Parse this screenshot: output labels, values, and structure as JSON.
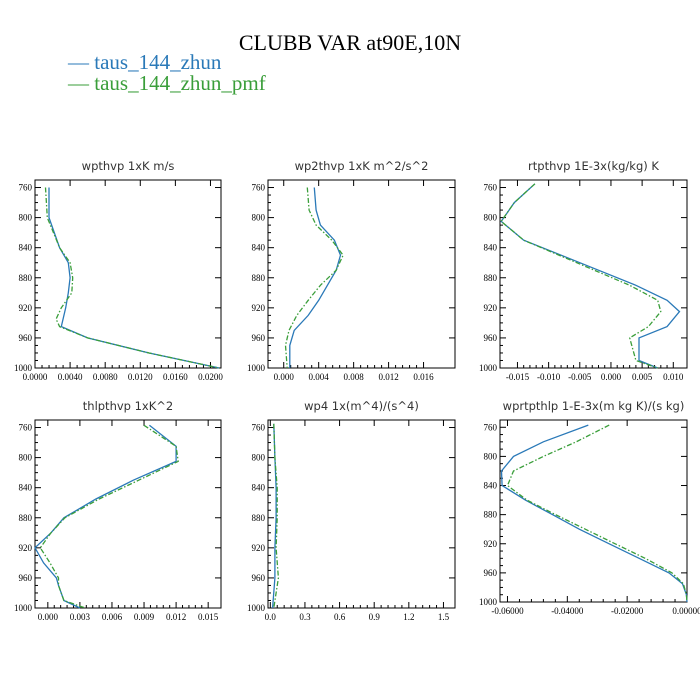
{
  "title": "CLUBB VAR at90E,10N",
  "legend": [
    {
      "label": "— taus_144_zhun",
      "color": "#2a79b8"
    },
    {
      "label": "— taus_144_zhun_pmf",
      "color": "#3a9e3a"
    }
  ],
  "chart_data": [
    {
      "type": "line",
      "title": "wpthvp  1xK m/s",
      "xlim": [
        0,
        0.0212
      ],
      "xticks": [
        0,
        0.004,
        0.008,
        0.012,
        0.016,
        0.02
      ],
      "xtick_labels": [
        "0.0000",
        "0.0040",
        "0.0080",
        "0.0120",
        "0.0160",
        "0.0200"
      ],
      "ylim": [
        1000,
        750
      ],
      "yticks": [
        760,
        800,
        840,
        880,
        920,
        960,
        1000
      ],
      "series": [
        {
          "style": "solid",
          "color": "#2a79b8",
          "y": [
            760,
            800,
            840,
            860,
            880,
            900,
            920,
            945,
            960,
            980,
            1000
          ],
          "x": [
            0.0016,
            0.0016,
            0.0028,
            0.0038,
            0.004,
            0.0038,
            0.0035,
            0.003,
            0.006,
            0.013,
            0.021
          ]
        },
        {
          "style": "dashed",
          "color": "#3a9e3a",
          "y": [
            760,
            800,
            840,
            860,
            880,
            900,
            920,
            935,
            945,
            960,
            980,
            1000
          ],
          "x": [
            0.0012,
            0.0014,
            0.0028,
            0.004,
            0.0043,
            0.0042,
            0.003,
            0.0024,
            0.0028,
            0.006,
            0.013,
            0.021
          ]
        }
      ]
    },
    {
      "type": "line",
      "title": "wp2thvp  1xK m^2/s^2",
      "xlim": [
        -0.0018,
        0.0196
      ],
      "xticks": [
        0,
        0.004,
        0.008,
        0.012,
        0.016
      ],
      "xtick_labels": [
        "0.000",
        "0.004",
        "0.008",
        "0.012",
        "0.016"
      ],
      "ylim": [
        1000,
        750
      ],
      "yticks": [
        760,
        800,
        840,
        880,
        920,
        960,
        1000
      ],
      "series": [
        {
          "style": "solid",
          "color": "#2a79b8",
          "y": [
            760,
            790,
            810,
            830,
            850,
            870,
            890,
            910,
            930,
            950,
            970,
            1000
          ],
          "x": [
            0.0035,
            0.0037,
            0.0042,
            0.0058,
            0.0065,
            0.006,
            0.005,
            0.004,
            0.0028,
            0.0012,
            0.0007,
            0.0007
          ]
        },
        {
          "style": "dashed",
          "color": "#3a9e3a",
          "y": [
            760,
            790,
            810,
            830,
            850,
            870,
            890,
            910,
            930,
            950,
            970,
            1000
          ],
          "x": [
            0.0027,
            0.0029,
            0.0037,
            0.0055,
            0.0068,
            0.006,
            0.0042,
            0.0028,
            0.0015,
            0.0006,
            0.0002,
            0.0004
          ]
        }
      ]
    },
    {
      "type": "line",
      "title": "rtpthvp  1E-3x(kg/kg) K",
      "xlim": [
        -0.0178,
        0.0122
      ],
      "xticks": [
        -0.015,
        -0.01,
        -0.005,
        0,
        0.005,
        0.01
      ],
      "xtick_labels": [
        "-0.015",
        "-0.010",
        "-0.005",
        "0.000",
        "0.005",
        "0.010"
      ],
      "ylim": [
        1000,
        750
      ],
      "yticks": [
        760,
        800,
        840,
        880,
        920,
        960,
        1000
      ],
      "series": [
        {
          "style": "solid",
          "color": "#2a79b8",
          "y": [
            755,
            780,
            805,
            830,
            860,
            890,
            910,
            925,
            945,
            960,
            990,
            1000
          ],
          "x": [
            -0.0122,
            -0.0155,
            -0.0176,
            -0.014,
            -0.005,
            0.004,
            0.009,
            0.011,
            0.009,
            0.0045,
            0.0045,
            0.0075
          ]
        },
        {
          "style": "dashed",
          "color": "#3a9e3a",
          "y": [
            755,
            780,
            805,
            830,
            860,
            890,
            910,
            925,
            945,
            960,
            990,
            1000
          ],
          "x": [
            -0.0122,
            -0.0155,
            -0.0176,
            -0.014,
            -0.0055,
            0.003,
            0.0075,
            0.008,
            0.006,
            0.003,
            0.004,
            0.0075
          ]
        }
      ]
    },
    {
      "type": "line",
      "title": "thlpthvp  1xK^2",
      "xlim": [
        -0.0012,
        0.0162
      ],
      "xticks": [
        0,
        0.003,
        0.006,
        0.009,
        0.012,
        0.015
      ],
      "xtick_labels": [
        "0.000",
        "0.003",
        "0.006",
        "0.009",
        "0.012",
        "0.015"
      ],
      "ylim": [
        1000,
        750
      ],
      "yticks": [
        760,
        800,
        840,
        880,
        920,
        960,
        1000
      ],
      "series": [
        {
          "style": "solid",
          "color": "#2a79b8",
          "y": [
            757,
            785,
            805,
            830,
            855,
            880,
            900,
            920,
            940,
            960,
            970,
            990,
            1000
          ],
          "x": [
            0.0095,
            0.012,
            0.012,
            0.008,
            0.0045,
            0.0015,
            0.0003,
            -0.0012,
            -0.0004,
            0.0008,
            0.001,
            0.0015,
            0.003
          ]
        },
        {
          "style": "dashed",
          "color": "#3a9e3a",
          "y": [
            757,
            785,
            805,
            830,
            855,
            880,
            900,
            920,
            940,
            960,
            970,
            990,
            1000
          ],
          "x": [
            0.009,
            0.012,
            0.0122,
            0.0085,
            0.0048,
            0.0016,
            0.0003,
            -0.0007,
            0.0002,
            0.001,
            0.001,
            0.0015,
            0.0035
          ]
        }
      ]
    },
    {
      "type": "line",
      "title": "wp4  1x(m^4)/(s^4)",
      "xlim": [
        -0.02,
        1.6
      ],
      "xticks": [
        0,
        0.3,
        0.6,
        0.9,
        1.2,
        1.5
      ],
      "xtick_labels": [
        "0.0",
        "0.3",
        "0.6",
        "0.9",
        "1.2",
        "1.5"
      ],
      "ylim": [
        1000,
        750
      ],
      "yticks": [
        760,
        800,
        840,
        880,
        920,
        960,
        1000
      ],
      "series": [
        {
          "style": "solid",
          "color": "#2a79b8",
          "y": [
            755,
            800,
            840,
            880,
            920,
            960,
            1000
          ],
          "x": [
            0.03,
            0.04,
            0.05,
            0.05,
            0.04,
            0.04,
            0.02
          ]
        },
        {
          "style": "dashed",
          "color": "#3a9e3a",
          "y": [
            755,
            800,
            840,
            880,
            920,
            960,
            1000
          ],
          "x": [
            0.03,
            0.04,
            0.06,
            0.06,
            0.05,
            0.07,
            0.03
          ]
        }
      ]
    },
    {
      "type": "line",
      "title": "wprtpthlp  1-E-3x(m kg K)/(s kg)",
      "xlim": [
        -0.0625,
        0
      ],
      "xticks": [
        -0.06,
        -0.04,
        -0.02,
        0
      ],
      "xtick_labels": [
        "-0.06000",
        "-0.04000",
        "-0.02000",
        "0.00000"
      ],
      "ylim": [
        1000,
        750
      ],
      "yticks": [
        760,
        800,
        840,
        880,
        920,
        960,
        1000
      ],
      "series": [
        {
          "style": "solid",
          "color": "#2a79b8",
          "y": [
            757,
            780,
            800,
            820,
            840,
            860,
            880,
            900,
            920,
            940,
            960,
            975,
            990,
            1000
          ],
          "x": [
            -0.033,
            -0.048,
            -0.058,
            -0.062,
            -0.0618,
            -0.054,
            -0.045,
            -0.036,
            -0.026,
            -0.016,
            -0.006,
            -0.0015,
            -0.0002,
            0
          ]
        },
        {
          "style": "dashed",
          "color": "#3a9e3a",
          "y": [
            757,
            780,
            800,
            820,
            840,
            860,
            880,
            900,
            920,
            940,
            960,
            975,
            990,
            1000
          ],
          "x": [
            -0.026,
            -0.037,
            -0.048,
            -0.058,
            -0.06,
            -0.0535,
            -0.044,
            -0.034,
            -0.024,
            -0.014,
            -0.005,
            -0.0012,
            -0.0002,
            0
          ]
        }
      ]
    }
  ]
}
